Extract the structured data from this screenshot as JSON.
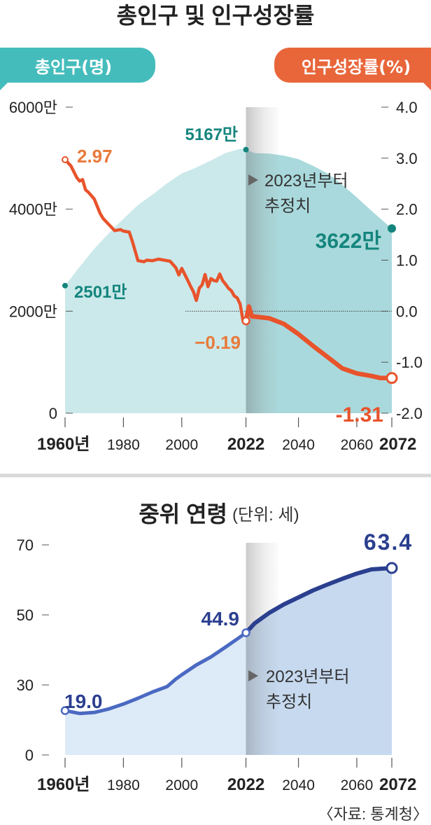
{
  "chart_data": [
    {
      "type": "line",
      "title": "총인구 및 인구성장률",
      "left_axis_label": "총인구(명)",
      "right_axis_label": "인구성장률(%)",
      "x_ticks": [
        "1960년",
        "1980",
        "2000",
        "2022",
        "2040",
        "2060",
        "2072"
      ],
      "x_tick_values": [
        1960,
        1980,
        2000,
        2022,
        2040,
        2060,
        2072
      ],
      "x_range": [
        1960,
        2072
      ],
      "projection_start": 2022,
      "projection_note": "2023년부터\n추정치",
      "left_ticks": [
        "6000만",
        "4000만",
        "2000만",
        "0"
      ],
      "left_tick_values": [
        6000,
        4000,
        2000,
        0
      ],
      "left_range": [
        0,
        6000
      ],
      "right_ticks": [
        "4.0",
        "3.0",
        "2.0",
        "1.0",
        "0.0",
        "-1.0",
        "-2.0"
      ],
      "right_tick_values": [
        4,
        3,
        2,
        1,
        0,
        -1,
        -2
      ],
      "right_range": [
        -2,
        4
      ],
      "series": [
        {
          "name": "총인구",
          "unit": "만 명",
          "points": [
            [
              1960,
              2501
            ],
            [
              1965,
              2870
            ],
            [
              1970,
              3224
            ],
            [
              1975,
              3528
            ],
            [
              1980,
              3812
            ],
            [
              1985,
              4081
            ],
            [
              1990,
              4287
            ],
            [
              1995,
              4509
            ],
            [
              2000,
              4701
            ],
            [
              2005,
              4818
            ],
            [
              2010,
              4955
            ],
            [
              2015,
              5101
            ],
            [
              2020,
              5184
            ],
            [
              2022,
              5167
            ],
            [
              2025,
              5100
            ],
            [
              2030,
              5090
            ],
            [
              2035,
              5050
            ],
            [
              2040,
              4980
            ],
            [
              2045,
              4850
            ],
            [
              2050,
              4700
            ],
            [
              2055,
              4480
            ],
            [
              2060,
              4230
            ],
            [
              2065,
              3970
            ],
            [
              2070,
              3720
            ],
            [
              2072,
              3622
            ]
          ],
          "labels": [
            "2501만",
            "5167만",
            "3622만"
          ]
        },
        {
          "name": "인구성장률",
          "unit": "%",
          "points": [
            [
              1960,
              2.97
            ],
            [
              1962,
              2.85
            ],
            [
              1964,
              2.62
            ],
            [
              1965,
              2.55
            ],
            [
              1966,
              2.58
            ],
            [
              1967,
              2.38
            ],
            [
              1968,
              2.33
            ],
            [
              1970,
              2.2
            ],
            [
              1972,
              1.92
            ],
            [
              1973,
              1.82
            ],
            [
              1975,
              1.7
            ],
            [
              1977,
              1.58
            ],
            [
              1979,
              1.6
            ],
            [
              1980,
              1.57
            ],
            [
              1982,
              1.55
            ],
            [
              1983,
              1.38
            ],
            [
              1985,
              0.99
            ],
            [
              1987,
              0.97
            ],
            [
              1988,
              1.0
            ],
            [
              1990,
              0.99
            ],
            [
              1992,
              1.02
            ],
            [
              1994,
              1.0
            ],
            [
              1996,
              0.98
            ],
            [
              1998,
              0.85
            ],
            [
              1999,
              0.71
            ],
            [
              2000,
              0.84
            ],
            [
              2002,
              0.61
            ],
            [
              2003,
              0.49
            ],
            [
              2004,
              0.38
            ],
            [
              2005,
              0.21
            ],
            [
              2006,
              0.45
            ],
            [
              2007,
              0.52
            ],
            [
              2008,
              0.72
            ],
            [
              2009,
              0.48
            ],
            [
              2010,
              0.64
            ],
            [
              2011,
              0.6
            ],
            [
              2012,
              0.59
            ],
            [
              2013,
              0.73
            ],
            [
              2014,
              0.6
            ],
            [
              2015,
              0.53
            ],
            [
              2016,
              0.45
            ],
            [
              2017,
              0.4
            ],
            [
              2018,
              0.3
            ],
            [
              2019,
              0.26
            ],
            [
              2020,
              0.14
            ],
            [
              2021,
              -0.18
            ],
            [
              2022,
              -0.19
            ],
            [
              2023,
              0.09
            ],
            [
              2024,
              -0.1
            ],
            [
              2030,
              -0.14
            ],
            [
              2035,
              -0.25
            ],
            [
              2040,
              -0.45
            ],
            [
              2045,
              -0.68
            ],
            [
              2050,
              -0.9
            ],
            [
              2055,
              -1.12
            ],
            [
              2060,
              -1.22
            ],
            [
              2065,
              -1.27
            ],
            [
              2068,
              -1.31
            ],
            [
              2072,
              -1.31
            ]
          ],
          "labels": [
            "2.97",
            "-0.19",
            "-1.31"
          ]
        }
      ]
    },
    {
      "type": "line",
      "title": "중위 연령",
      "unit_note": "(단위: 세)",
      "x_ticks": [
        "1960년",
        "1980",
        "2000",
        "2022",
        "2040",
        "2060",
        "2072"
      ],
      "x_tick_values": [
        1960,
        1980,
        2000,
        2022,
        2040,
        2060,
        2072
      ],
      "x_range": [
        1960,
        2072
      ],
      "projection_start": 2022,
      "projection_note": "2023년부터\n추정치",
      "y_ticks": [
        "70",
        "50",
        "30",
        "0"
      ],
      "series": [
        {
          "name": "중위 연령",
          "unit": "세",
          "points": [
            [
              1960,
              19.0
            ],
            [
              1965,
              17.8
            ],
            [
              1970,
              18.2
            ],
            [
              1975,
              19.7
            ],
            [
              1980,
              21.8
            ],
            [
              1985,
              24.3
            ],
            [
              1990,
              27.0
            ],
            [
              1995,
              29.3
            ],
            [
              1998,
              31.7
            ],
            [
              2000,
              32.9
            ],
            [
              2005,
              35.7
            ],
            [
              2010,
              38.0
            ],
            [
              2015,
              40.8
            ],
            [
              2020,
              43.7
            ],
            [
              2022,
              44.9
            ],
            [
              2025,
              47.6
            ],
            [
              2030,
              50.6
            ],
            [
              2035,
              53.0
            ],
            [
              2040,
              55.0
            ],
            [
              2045,
              57.0
            ],
            [
              2050,
              58.7
            ],
            [
              2055,
              60.3
            ],
            [
              2060,
              61.8
            ],
            [
              2065,
              63.0
            ],
            [
              2072,
              63.4
            ]
          ],
          "labels": [
            "19.0",
            "44.9",
            "63.4"
          ]
        }
      ]
    }
  ],
  "source": "〈자료: 통계청〉",
  "colors": {
    "teal": "#45bcbc",
    "teal_dark": "#14857d",
    "population_area": "#cbe9ea",
    "population_area_projection": "#a9d9dc",
    "orange": "#e8532b",
    "orange_label": "#e87a3a",
    "navy": "#2b3f8f",
    "navy_light": "#4a69c2",
    "age_area": "#ddeaf7",
    "age_area_projection": "#c6d9ef"
  }
}
